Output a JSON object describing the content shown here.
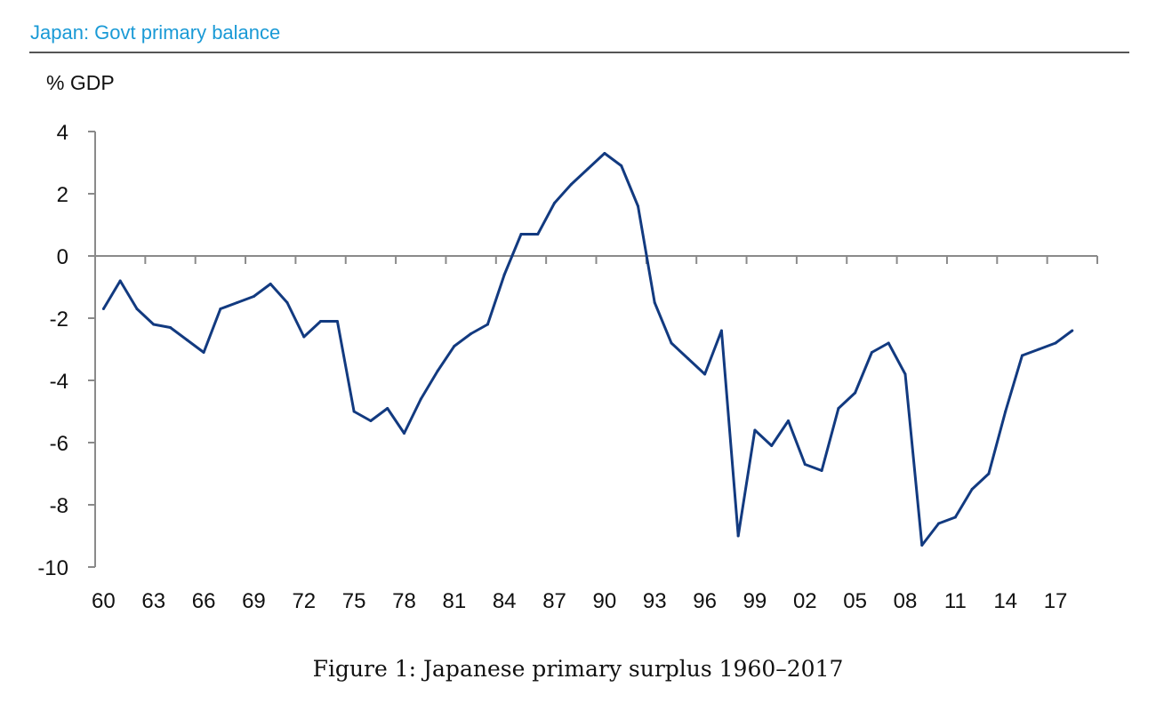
{
  "chart_data": {
    "type": "line",
    "title": "Japan: Govt primary balance",
    "ylabel": "% GDP",
    "xlabel": "",
    "ylim": [
      -10,
      4
    ],
    "yticks": [
      "4",
      "2",
      "0",
      "-2",
      "-4",
      "-6",
      "-8",
      "-10"
    ],
    "xlim": [
      1960,
      2019
    ],
    "xtick_labels": [
      "60",
      "63",
      "66",
      "69",
      "72",
      "75",
      "78",
      "81",
      "84",
      "87",
      "90",
      "93",
      "96",
      "99",
      "02",
      "05",
      "08",
      "11",
      "14",
      "17"
    ],
    "grid": false,
    "line_color": "#123a80",
    "title_color": "#1a9ad6",
    "series": [
      {
        "x": [
          1960,
          1961,
          1962,
          1963,
          1964,
          1965,
          1966,
          1967,
          1968,
          1969,
          1970,
          1971,
          1972,
          1973,
          1974,
          1975,
          1976,
          1977,
          1978,
          1979,
          1980,
          1981,
          1982,
          1983,
          1984,
          1985,
          1986,
          1987,
          1988,
          1989,
          1990,
          1991,
          1992,
          1993,
          1994,
          1995,
          1996,
          1997,
          1998,
          1999,
          2000,
          2001,
          2002,
          2003,
          2004,
          2005,
          2006,
          2007,
          2008,
          2009,
          2010,
          2011,
          2012,
          2013,
          2014,
          2015,
          2016,
          2017,
          2018
        ],
        "values": [
          -1.7,
          -0.8,
          -1.7,
          -2.2,
          -2.3,
          -2.7,
          -3.1,
          -1.7,
          -1.5,
          -1.3,
          -0.9,
          -1.5,
          -2.6,
          -2.1,
          -2.1,
          -5.0,
          -5.3,
          -4.9,
          -5.7,
          -4.6,
          -3.7,
          -2.9,
          -2.5,
          -2.2,
          -0.6,
          0.7,
          0.7,
          1.7,
          2.3,
          2.8,
          3.3,
          2.9,
          1.6,
          -1.5,
          -2.8,
          -3.3,
          -3.8,
          -2.4,
          -9.0,
          -5.6,
          -6.1,
          -5.3,
          -6.7,
          -6.9,
          -4.9,
          -4.4,
          -3.1,
          -2.8,
          -3.8,
          -9.3,
          -8.6,
          -8.4,
          -7.5,
          -7.0,
          -5.0,
          -3.2,
          -3.0,
          -2.8,
          -2.4
        ]
      }
    ]
  },
  "caption": "Figure 1:  Japanese primary surplus 1960–2017"
}
